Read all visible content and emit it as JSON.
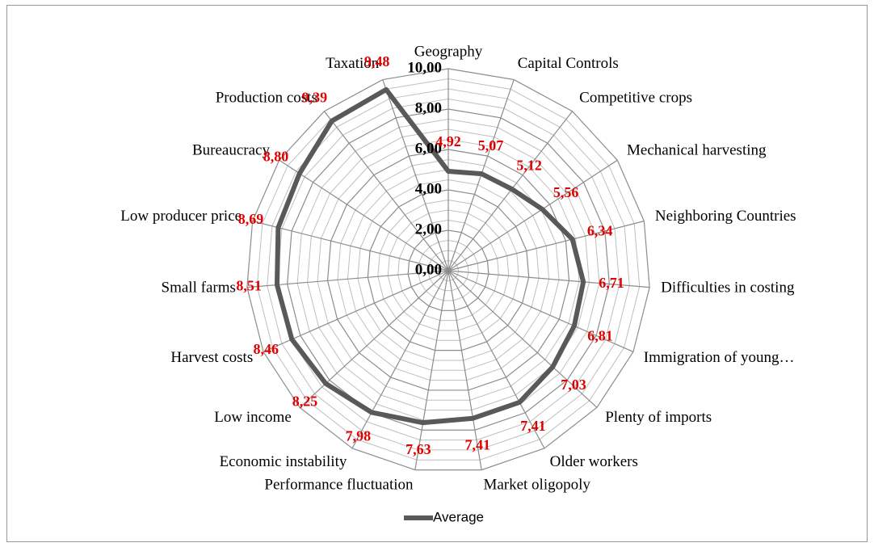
{
  "chart_data": {
    "type": "radar",
    "categories": [
      "Geography",
      "Capital Controls",
      "Competitive crops",
      "Mechanical harvesting",
      "Neighboring Countries",
      "Difficulties in costing",
      "Immigration of young…",
      "Plenty of imports",
      "Older workers",
      "Market oligopoly",
      "Performance fluctuation",
      "Economic instability",
      "Low income",
      "Harvest costs",
      "Small farms",
      "Low producer price",
      "Bureaucracy",
      "Production costs",
      "Taxation"
    ],
    "series": [
      {
        "name": "Average",
        "color": "#595959",
        "values": [
          4.92,
          5.07,
          5.12,
          5.56,
          6.34,
          6.71,
          6.81,
          7.03,
          7.41,
          7.41,
          7.63,
          7.98,
          8.25,
          8.46,
          8.51,
          8.69,
          8.8,
          9.39,
          9.48
        ],
        "value_labels": [
          "4,92",
          "5,07",
          "5,12",
          "5,56",
          "6,34",
          "6,71",
          "6,81",
          "7,03",
          "7,41",
          "7,41",
          "7,63",
          "7,98",
          "8,25",
          "8,46",
          "8,51",
          "8,69",
          "8,80",
          "9,39",
          "9,48"
        ]
      }
    ],
    "ylim": [
      0,
      10
    ],
    "yticks": [
      {
        "value": 0,
        "label": "0,00"
      },
      {
        "value": 2,
        "label": "2,00"
      },
      {
        "value": 4,
        "label": "4,00"
      },
      {
        "value": 6,
        "label": "6,00"
      },
      {
        "value": 8,
        "label": "8,00"
      },
      {
        "value": 10,
        "label": "10,00"
      }
    ],
    "grid": true,
    "legend": "bottom"
  }
}
